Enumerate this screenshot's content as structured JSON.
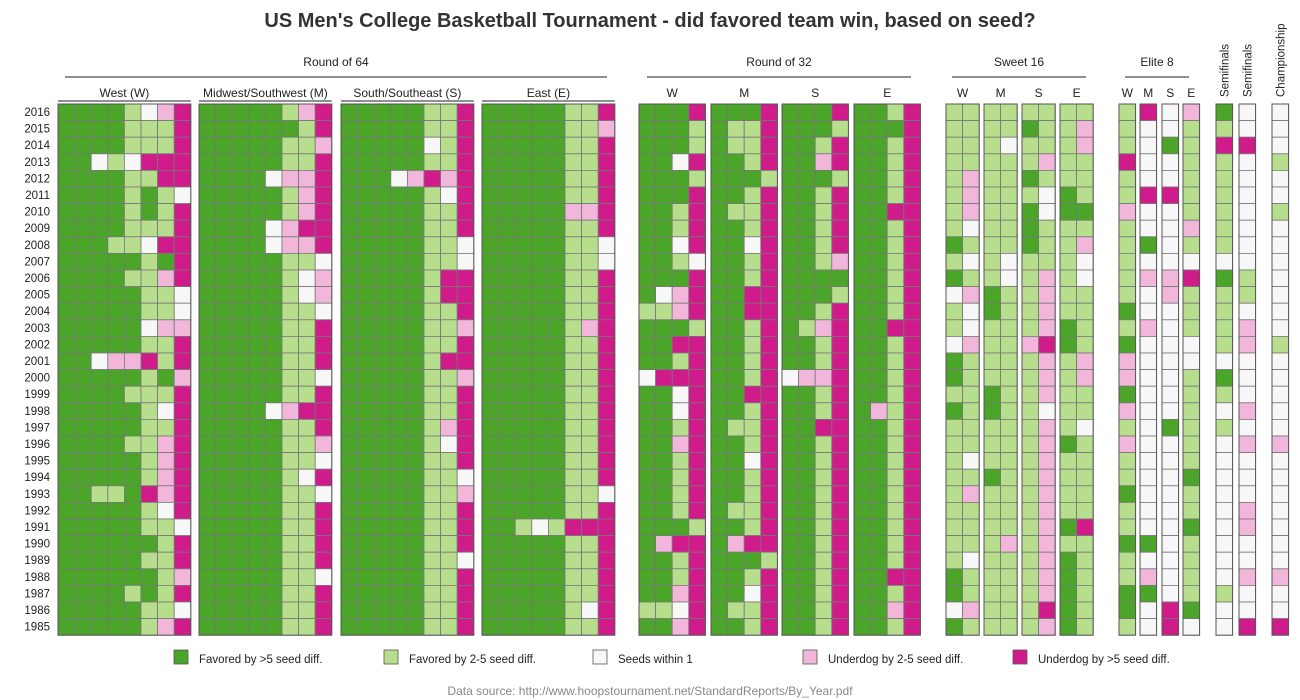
{
  "chart_data": {
    "type": "heatmap",
    "title": "US Men's College Basketball Tournament - did favored team win, based on seed?",
    "source": "Data source: http://www.hoopstournament.net/StandardReports/By_Year.pdf",
    "years": [
      "2016",
      "2015",
      "2014",
      "2013",
      "2012",
      "2011",
      "2010",
      "2009",
      "2008",
      "2007",
      "2006",
      "2005",
      "2004",
      "2003",
      "2002",
      "2001",
      "2000",
      "1999",
      "1998",
      "1997",
      "1996",
      "1995",
      "1994",
      "1993",
      "1992",
      "1991",
      "1990",
      "1989",
      "1988",
      "1987",
      "1986",
      "1985"
    ],
    "categories": [
      {
        "code": 1,
        "label": "Favored by >5 seed diff.",
        "color": "#4aa528"
      },
      {
        "code": 2,
        "label": "Favored by 2-5 seed diff.",
        "color": "#b7de8c"
      },
      {
        "code": 3,
        "label": "Seeds within 1",
        "color": "#f7f7f7"
      },
      {
        "code": 4,
        "label": "Underdog by 2-5 seed diff.",
        "color": "#f1b6da"
      },
      {
        "code": 5,
        "label": "Underdog by >5 seed diff.",
        "color": "#d01c8b"
      }
    ],
    "rounds": [
      {
        "label": "Round of 64",
        "groups": [
          {
            "label": "West (W)",
            "cols": 8,
            "rows": [
              "11112345",
              "11112225",
              "11112225",
              "11323555",
              "11112255",
              "11112123",
              "11112125",
              "11112225",
              "11122355",
              "11111215",
              "11112245",
              "11111223",
              "11111223",
              "11111344",
              "11111225",
              "11344525",
              "11111214",
              "11112225",
              "11111235",
              "11111225",
              "11112245",
              "11111245",
              "11111245",
              "11221545",
              "11111235",
              "11111223",
              "11111125",
              "11111225",
              "11111124",
              "11112125",
              "11111223",
              "11111245"
            ]
          },
          {
            "label": "Midwest/Southwest (M)",
            "cols": 8,
            "rows": [
              "11111245",
              "11111125",
              "11111224",
              "11111225",
              "11113445",
              "11111245",
              "11111245",
              "11113455",
              "11113445",
              "11111223",
              "11111234",
              "11111234",
              "11111223",
              "11111225",
              "11111225",
              "11111225",
              "11111223",
              "11111225",
              "11113455",
              "11111225",
              "11111224",
              "11111223",
              "11111235",
              "11111223",
              "11111225",
              "11111225",
              "11111225",
              "11111225",
              "11111223",
              "11111225",
              "11111225",
              "11111225"
            ]
          },
          {
            "label": "South/Southeast (S)",
            "cols": 8,
            "rows": [
              "11111225",
              "11111225",
              "11111325",
              "11111225",
              "11134545",
              "11111235",
              "11111225",
              "11111225",
              "11111223",
              "11111223",
              "11111255",
              "11111255",
              "11111225",
              "11111224",
              "11111225",
              "11111255",
              "11111224",
              "11111225",
              "11111225",
              "11111245",
              "11111235",
              "11111225",
              "11111223",
              "11111224",
              "11111225",
              "11111225",
              "11111225",
              "11111223",
              "11111225",
              "11111225",
              "11111225",
              "11111225"
            ]
          },
          {
            "label": "East (E)",
            "cols": 8,
            "rows": [
              "11111225",
              "11111224",
              "11111225",
              "11111225",
              "11111225",
              "11111225",
              "11111445",
              "11111225",
              "11111223",
              "11111223",
              "11111225",
              "11111225",
              "11111225",
              "11111245",
              "11111225",
              "11111225",
              "11111225",
              "11111225",
              "11111225",
              "11111225",
              "11111225",
              "11111225",
              "11111225",
              "11111223",
              "11111225",
              "11232555",
              "11111225",
              "11111225",
              "11111225",
              "11111225",
              "11111235",
              "11111225"
            ]
          }
        ]
      },
      {
        "label": "Round of 32",
        "groups": [
          {
            "label": "W",
            "cols": 4,
            "rows": [
              "1115",
              "1112",
              "1112",
              "1135",
              "1112",
              "1115",
              "1125",
              "1125",
              "1135",
              "1123",
              "1115",
              "1345",
              "2245",
              "1112",
              "1155",
              "1125",
              "3555",
              "1135",
              "1135",
              "1125",
              "1145",
              "1125",
              "1125",
              "1125",
              "1125",
              "1112",
              "1455",
              "1125",
              "1125",
              "1145",
              "2235",
              "1145"
            ]
          },
          {
            "label": "M",
            "cols": 4,
            "rows": [
              "1115",
              "1225",
              "1225",
              "1125",
              "1112",
              "1125",
              "1225",
              "1125",
              "1135",
              "1125",
              "1125",
              "1155",
              "1155",
              "1125",
              "1125",
              "1125",
              "1125",
              "1155",
              "1125",
              "1225",
              "1125",
              "1135",
              "1125",
              "1125",
              "1225",
              "1125",
              "1455",
              "1112",
              "1125",
              "1135",
              "1225",
              "1125"
            ]
          },
          {
            "label": "S",
            "cols": 4,
            "rows": [
              "1115",
              "1112",
              "1125",
              "1145",
              "1112",
              "1125",
              "1125",
              "1125",
              "1125",
              "1124",
              "1111",
              "1112",
              "1125",
              "1245",
              "1125",
              "1125",
              "3445",
              "1125",
              "1125",
              "1155",
              "1125",
              "1125",
              "1125",
              "1125",
              "1125",
              "1125",
              "1125",
              "1125",
              "1125",
              "1125",
              "1125",
              "1125"
            ]
          },
          {
            "label": "E",
            "cols": 4,
            "rows": [
              "1125",
              "1115",
              "1125",
              "1125",
              "1125",
              "1125",
              "1155",
              "1125",
              "1125",
              "1125",
              "1125",
              "1125",
              "1125",
              "1155",
              "1125",
              "1125",
              "1125",
              "1125",
              "1425",
              "1125",
              "1125",
              "1125",
              "1125",
              "1125",
              "1125",
              "1125",
              "1125",
              "1125",
              "1155",
              "1125",
              "1145",
              "1125"
            ]
          }
        ]
      },
      {
        "label": "Sweet 16",
        "groups": [
          {
            "label": "W",
            "cols": 2,
            "rows": [
              "22",
              "22",
              "22",
              "22",
              "24",
              "24",
              "24",
              "23",
              "12",
              "23",
              "12",
              "34",
              "23",
              "23",
              "34",
              "12",
              "12",
              "22",
              "12",
              "22",
              "22",
              "23",
              "22",
              "24",
              "22",
              "22",
              "22",
              "23",
              "12",
              "12",
              "34",
              "12"
            ]
          },
          {
            "label": "M",
            "cols": 2,
            "rows": [
              "22",
              "22",
              "23",
              "22",
              "22",
              "22",
              "22",
              "22",
              "22",
              "23",
              "23",
              "12",
              "12",
              "22",
              "22",
              "22",
              "22",
              "12",
              "12",
              "22",
              "22",
              "22",
              "12",
              "22",
              "22",
              "22",
              "24",
              "22",
              "22",
              "22",
              "22",
              "22"
            ]
          },
          {
            "label": "S",
            "cols": 2,
            "rows": [
              "22",
              "12",
              "22",
              "24",
              "12",
              "23",
              "13",
              "12",
              "12",
              "22",
              "24",
              "24",
              "24",
              "24",
              "45",
              "24",
              "24",
              "24",
              "23",
              "24",
              "24",
              "24",
              "24",
              "24",
              "24",
              "24",
              "24",
              "24",
              "24",
              "24",
              "25",
              "24"
            ]
          },
          {
            "label": "E",
            "cols": 2,
            "rows": [
              "22",
              "24",
              "24",
              "22",
              "22",
              "12",
              "11",
              "22",
              "24",
              "23",
              "23",
              "22",
              "22",
              "12",
              "12",
              "24",
              "24",
              "22",
              "22",
              "23",
              "12",
              "22",
              "22",
              "22",
              "22",
              "15",
              "22",
              "12",
              "12",
              "12",
              "12",
              "12"
            ]
          }
        ]
      },
      {
        "label": "Elite 8",
        "groups": [
          {
            "label": "W",
            "cols": 1,
            "rows": [
              "2",
              "2",
              "2",
              "5",
              "2",
              "2",
              "4",
              "2",
              "2",
              "2",
              "2",
              "2",
              "1",
              "2",
              "1",
              "4",
              "4",
              "1",
              "4",
              "2",
              "4",
              "2",
              "2",
              "1",
              "2",
              "2",
              "1",
              "2",
              "2",
              "1",
              "1",
              "2"
            ]
          },
          {
            "label": "M",
            "cols": 1,
            "rows": [
              "5",
              "3",
              "3",
              "3",
              "3",
              "5",
              "3",
              "3",
              "1",
              "3",
              "4",
              "3",
              "3",
              "4",
              "3",
              "3",
              "3",
              "3",
              "3",
              "3",
              "3",
              "3",
              "3",
              "3",
              "3",
              "3",
              "1",
              "3",
              "4",
              "1",
              "3",
              "3"
            ]
          },
          {
            "label": "S",
            "cols": 1,
            "rows": [
              "3",
              "3",
              "1",
              "3",
              "3",
              "5",
              "3",
              "3",
              "3",
              "3",
              "4",
              "4",
              "3",
              "3",
              "3",
              "3",
              "3",
              "3",
              "3",
              "1",
              "3",
              "3",
              "3",
              "3",
              "3",
              "3",
              "3",
              "3",
              "3",
              "3",
              "5",
              "5"
            ]
          },
          {
            "label": "E",
            "cols": 1,
            "rows": [
              "4",
              "2",
              "2",
              "2",
              "2",
              "2",
              "2",
              "4",
              "2",
              "3",
              "5",
              "2",
              "2",
              "2",
              "3",
              "3",
              "2",
              "2",
              "2",
              "2",
              "2",
              "2",
              "1",
              "2",
              "2",
              "1",
              "2",
              "2",
              "2",
              "2",
              "1",
              "3"
            ]
          }
        ]
      },
      {
        "label": "",
        "groups": [
          {
            "label": "Semifinals",
            "cols": 1,
            "rows": [
              "1",
              "2",
              "5",
              "2",
              "2",
              "2",
              "2",
              "2",
              "2",
              "3",
              "1",
              "2",
              "2",
              "2",
              "2",
              "3",
              "1",
              "2",
              "3",
              "2",
              "3",
              "3",
              "3",
              "3",
              "3",
              "3",
              "3",
              "3",
              "3",
              "2",
              "3",
              "3"
            ]
          },
          {
            "label": "Semifinals",
            "cols": 1,
            "rows": [
              "3",
              "3",
              "5",
              "3",
              "3",
              "3",
              "3",
              "3",
              "3",
              "3",
              "2",
              "2",
              "3",
              "4",
              "4",
              "3",
              "3",
              "3",
              "4",
              "3",
              "4",
              "3",
              "3",
              "3",
              "4",
              "4",
              "3",
              "3",
              "4",
              "3",
              "3",
              "5"
            ]
          }
        ]
      },
      {
        "label": "",
        "groups": [
          {
            "label": "Championship",
            "cols": 1,
            "rows": [
              "3",
              "3",
              "3",
              "2",
              "3",
              "3",
              "2",
              "3",
              "3",
              "3",
              "3",
              "3",
              "3",
              "3",
              "2",
              "3",
              "3",
              "3",
              "3",
              "3",
              "4",
              "3",
              "3",
              "3",
              "3",
              "3",
              "3",
              "3",
              "4",
              "3",
              "3",
              "5"
            ]
          }
        ]
      }
    ]
  }
}
